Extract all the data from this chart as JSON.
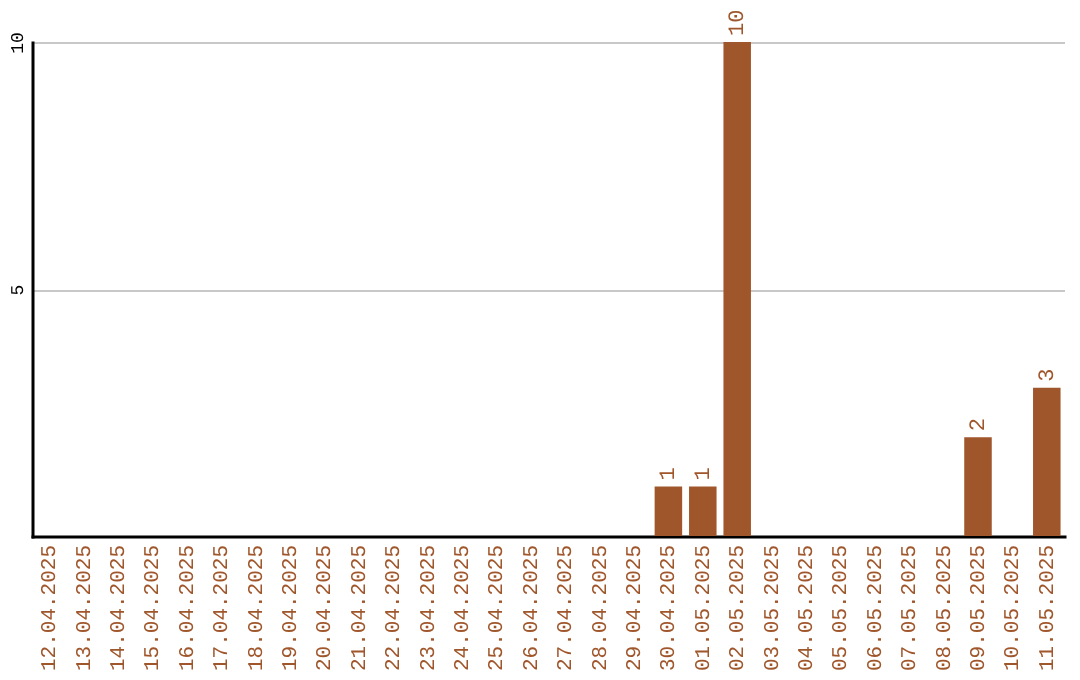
{
  "chart_data": {
    "type": "bar",
    "categories": [
      "12.04.2025",
      "13.04.2025",
      "14.04.2025",
      "15.04.2025",
      "16.04.2025",
      "17.04.2025",
      "18.04.2025",
      "19.04.2025",
      "20.04.2025",
      "21.04.2025",
      "22.04.2025",
      "23.04.2025",
      "24.04.2025",
      "25.04.2025",
      "26.04.2025",
      "27.04.2025",
      "28.04.2025",
      "29.04.2025",
      "30.04.2025",
      "01.05.2025",
      "02.05.2025",
      "03.05.2025",
      "04.05.2025",
      "05.05.2025",
      "06.05.2025",
      "07.05.2025",
      "08.05.2025",
      "09.05.2025",
      "10.05.2025",
      "11.05.2025"
    ],
    "values": [
      0,
      0,
      0,
      0,
      0,
      0,
      0,
      0,
      0,
      0,
      0,
      0,
      0,
      0,
      0,
      0,
      0,
      0,
      1,
      1,
      10,
      0,
      0,
      0,
      0,
      0,
      0,
      2,
      0,
      3
    ],
    "value_labels": [
      null,
      null,
      null,
      null,
      null,
      null,
      null,
      null,
      null,
      null,
      null,
      null,
      null,
      null,
      null,
      null,
      null,
      null,
      "1",
      "1",
      "10",
      null,
      null,
      null,
      null,
      null,
      null,
      "2",
      null,
      "3"
    ],
    "color": "#a0562b",
    "ylim": [
      0,
      10
    ],
    "yticks": [
      5,
      10
    ],
    "grid": "y"
  }
}
